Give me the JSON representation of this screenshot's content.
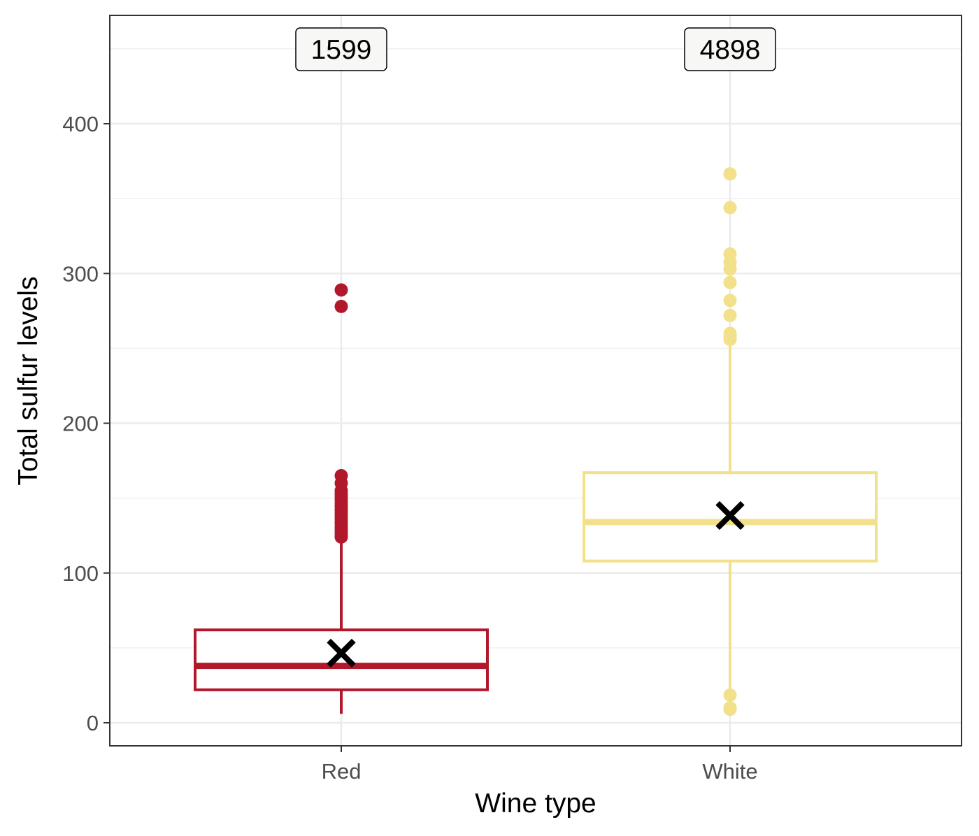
{
  "chart_data": {
    "type": "boxplot",
    "title": "",
    "xlabel": "Wine type",
    "ylabel": "Total sulfur levels",
    "ylim": [
      -15,
      470
    ],
    "yticks": [
      0,
      100,
      200,
      300,
      400
    ],
    "ytick_labels": [
      "0",
      "100",
      "200",
      "300",
      "400"
    ],
    "grid": true,
    "legend": "none",
    "categories": [
      "Red",
      "White"
    ],
    "series": [
      {
        "category": "Red",
        "color": "#b2182b",
        "count": 1599,
        "count_label": "1599",
        "min": 6,
        "q1": 22,
        "median": 38,
        "q3": 62,
        "max": 122,
        "mean": 46.5,
        "outliers": [
          289,
          278,
          165,
          160,
          155,
          153,
          151,
          149,
          147,
          145,
          144,
          142,
          140,
          138,
          136,
          134,
          133,
          131,
          129,
          127,
          125,
          124
        ]
      },
      {
        "category": "White",
        "color": "#f2e08a",
        "count": 4898,
        "count_label": "4898",
        "min": 19,
        "q1": 108,
        "median": 134,
        "q3": 167,
        "max": 256,
        "mean": 138.4,
        "outliers": [
          366.5,
          344,
          313,
          307.5,
          303,
          294,
          282,
          272,
          260,
          258,
          256,
          18.5,
          10,
          9
        ]
      }
    ],
    "mean_marker": "x-cross"
  }
}
